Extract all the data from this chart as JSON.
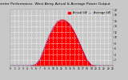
{
  "title": "Solar PV/Inverter Performance  West Array Actual & Average Power Output",
  "title_fontsize": 3.2,
  "bg_color": "#c8c8c8",
  "plot_bg_color": "#c8c8c8",
  "grid_color": "#ffffff",
  "fill_color": "#ff0000",
  "line_color": "#ff0000",
  "avg_line_color": "#0000ff",
  "legend_actual_color": "#ff0000",
  "legend_avg_color": "#0000ff",
  "legend_actual": "Actual kW",
  "legend_avg": "Average kW",
  "tick_color": "#000000",
  "x_hours": [
    0,
    1,
    2,
    3,
    4,
    5,
    6,
    7,
    8,
    9,
    10,
    11,
    12,
    13,
    14,
    15,
    16,
    17,
    18,
    19,
    20,
    21,
    22,
    23,
    24
  ],
  "actual_power": [
    0,
    0,
    0,
    0,
    0,
    0.05,
    0.5,
    2.5,
    6.5,
    10.5,
    13.5,
    15.8,
    16.5,
    16.2,
    14.8,
    12.2,
    9.0,
    5.5,
    2.0,
    0.3,
    0.02,
    0,
    0,
    0,
    0
  ],
  "avg_power": [
    0,
    0,
    0,
    0,
    0,
    0.03,
    0.4,
    2.2,
    6.0,
    10.0,
    13.0,
    15.3,
    16.1,
    15.8,
    14.4,
    11.8,
    8.5,
    5.0,
    1.8,
    0.25,
    0.01,
    0,
    0,
    0,
    0
  ],
  "ylim": [
    0,
    20
  ],
  "yticks": [
    2,
    4,
    6,
    8,
    10,
    12,
    14,
    16,
    18,
    20
  ],
  "xlim": [
    0,
    24
  ],
  "xticks": [
    0,
    1,
    2,
    3,
    4,
    5,
    6,
    7,
    8,
    9,
    10,
    11,
    12,
    13,
    14,
    15,
    16,
    17,
    18,
    19,
    20,
    21,
    22,
    23,
    24
  ],
  "tick_fontsize": 2.2,
  "legend_fontsize": 2.5
}
